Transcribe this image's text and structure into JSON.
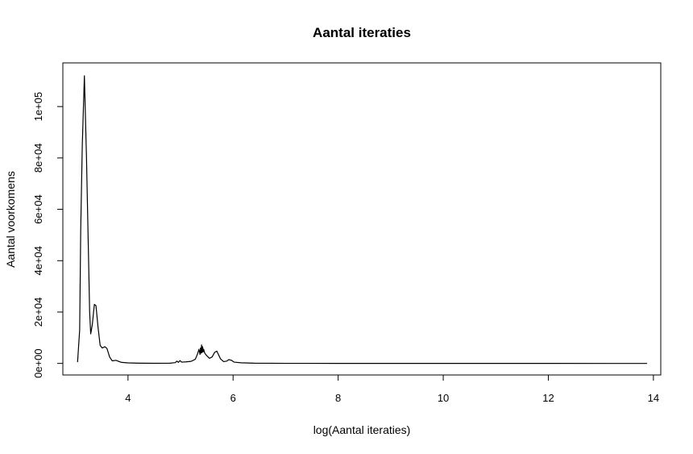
{
  "chart_data": {
    "type": "line",
    "title": "Aantal iteraties",
    "xlabel": "log(Aantal iteraties)",
    "ylabel": "Aantal voorkomens",
    "xlim": [
      2.76,
      14.14
    ],
    "ylim": [
      -4500,
      117000
    ],
    "xticks": [
      {
        "value": 4,
        "label": "4"
      },
      {
        "value": 6,
        "label": "6"
      },
      {
        "value": 8,
        "label": "8"
      },
      {
        "value": 10,
        "label": "10"
      },
      {
        "value": 12,
        "label": "12"
      },
      {
        "value": 14,
        "label": "14"
      }
    ],
    "yticks": [
      {
        "value": 0,
        "label": "0e+00"
      },
      {
        "value": 20000,
        "label": "2e+04"
      },
      {
        "value": 40000,
        "label": "4e+04"
      },
      {
        "value": 60000,
        "label": "6e+04"
      },
      {
        "value": 80000,
        "label": "8e+04"
      },
      {
        "value": 100000,
        "label": "1e+05"
      }
    ],
    "grid": false,
    "series": [
      {
        "color": "#000000",
        "points": [
          [
            3.04,
            500
          ],
          [
            3.08,
            13000
          ],
          [
            3.1,
            52000
          ],
          [
            3.13,
            85000
          ],
          [
            3.17,
            112000
          ],
          [
            3.21,
            80000
          ],
          [
            3.25,
            40000
          ],
          [
            3.27,
            20000
          ],
          [
            3.29,
            11500
          ],
          [
            3.32,
            15000
          ],
          [
            3.36,
            23000
          ],
          [
            3.39,
            22500
          ],
          [
            3.43,
            14000
          ],
          [
            3.47,
            7000
          ],
          [
            3.51,
            6000
          ],
          [
            3.56,
            6500
          ],
          [
            3.6,
            5800
          ],
          [
            3.65,
            2500
          ],
          [
            3.7,
            1000
          ],
          [
            3.77,
            1200
          ],
          [
            3.82,
            800
          ],
          [
            3.88,
            400
          ],
          [
            4.0,
            200
          ],
          [
            4.2,
            100
          ],
          [
            4.5,
            50
          ],
          [
            4.8,
            100
          ],
          [
            4.9,
            300
          ],
          [
            4.93,
            900
          ],
          [
            4.96,
            400
          ],
          [
            4.99,
            1100
          ],
          [
            5.02,
            500
          ],
          [
            5.1,
            600
          ],
          [
            5.2,
            800
          ],
          [
            5.28,
            1600
          ],
          [
            5.32,
            3500
          ],
          [
            5.35,
            5500
          ],
          [
            5.37,
            3500
          ],
          [
            5.38,
            6000
          ],
          [
            5.39,
            4000
          ],
          [
            5.4,
            7200
          ],
          [
            5.41,
            4200
          ],
          [
            5.42,
            6500
          ],
          [
            5.43,
            4500
          ],
          [
            5.44,
            5500
          ],
          [
            5.46,
            4000
          ],
          [
            5.5,
            3000
          ],
          [
            5.55,
            2000
          ],
          [
            5.6,
            2500
          ],
          [
            5.65,
            4300
          ],
          [
            5.69,
            4800
          ],
          [
            5.72,
            3500
          ],
          [
            5.76,
            1800
          ],
          [
            5.82,
            700
          ],
          [
            5.88,
            900
          ],
          [
            5.92,
            1500
          ],
          [
            5.97,
            1200
          ],
          [
            6.02,
            500
          ],
          [
            6.15,
            250
          ],
          [
            6.4,
            100
          ],
          [
            7.0,
            40
          ],
          [
            8.0,
            20
          ],
          [
            10.0,
            10
          ],
          [
            12.0,
            5
          ],
          [
            13.88,
            0
          ]
        ]
      }
    ]
  }
}
